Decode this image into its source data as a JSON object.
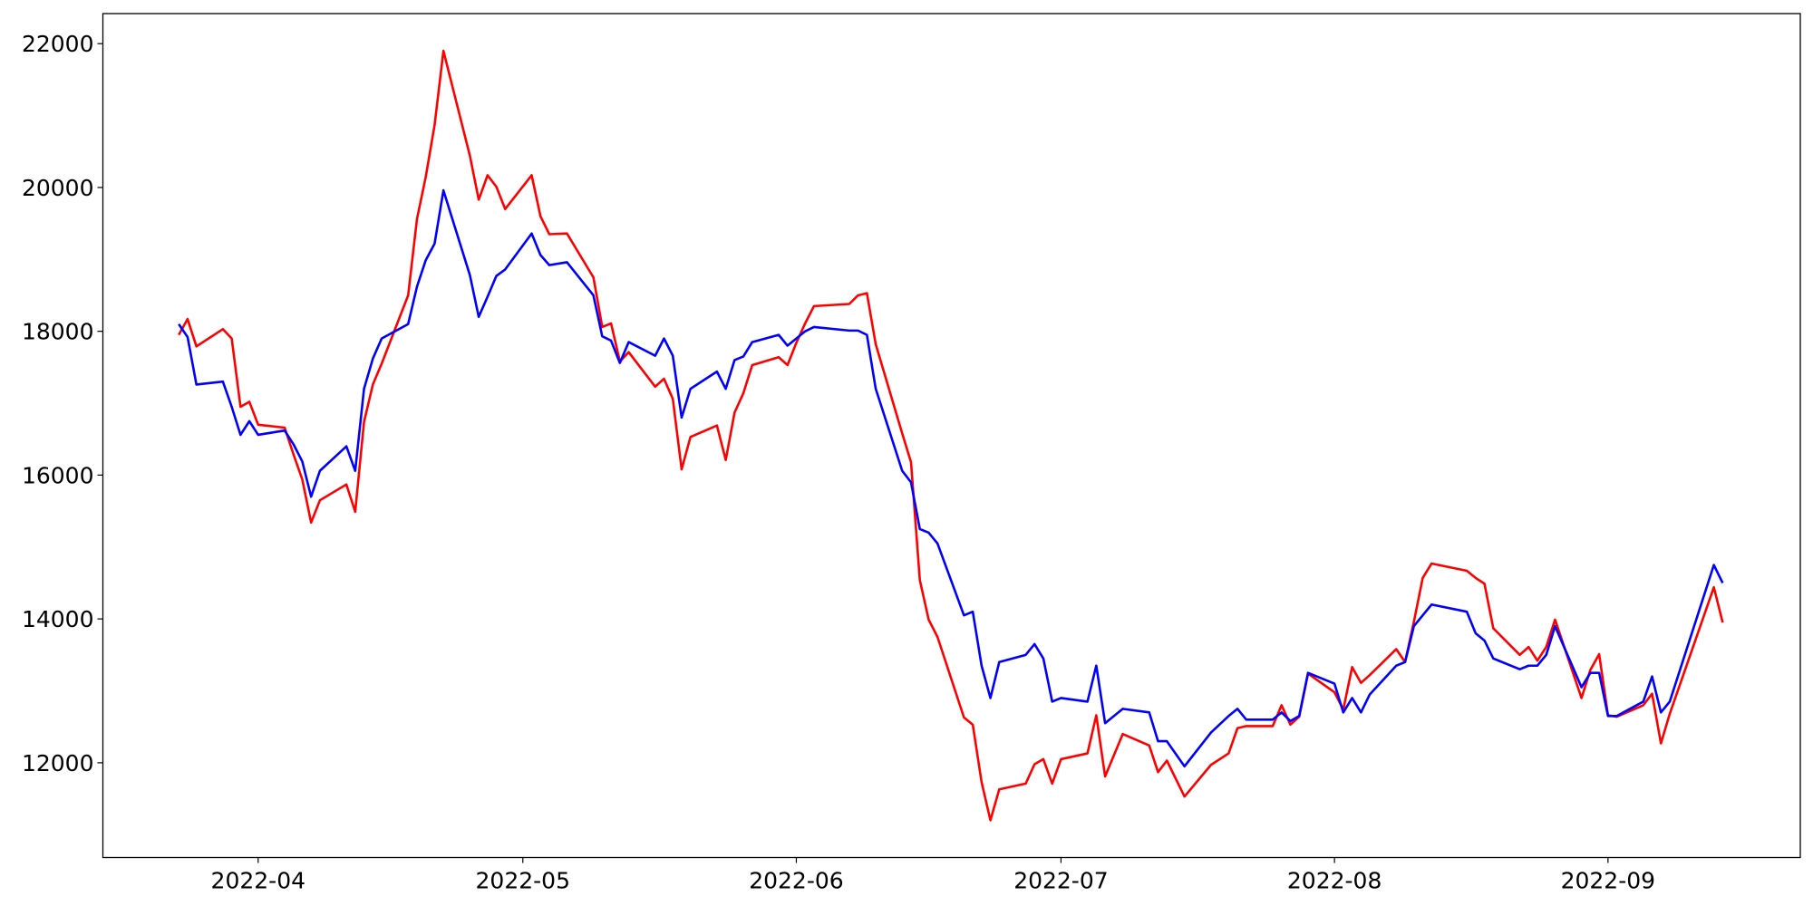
{
  "chart_data": {
    "type": "line",
    "x": [
      19074,
      19075,
      19076,
      19079,
      19080,
      19081,
      19082,
      19083,
      19086,
      19087,
      19088,
      19089,
      19090,
      19093,
      19094,
      19095,
      19096,
      19097,
      19100,
      19101,
      19102,
      19103,
      19104,
      19107,
      19108,
      19109,
      19110,
      19111,
      19114,
      19115,
      19116,
      19118,
      19121,
      19122,
      19123,
      19124,
      19125,
      19128,
      19129,
      19130,
      19131,
      19132,
      19135,
      19136,
      19137,
      19138,
      19139,
      19142,
      19143,
      19144,
      19145,
      19146,
      19150,
      19151,
      19152,
      19153,
      19156,
      19157,
      19158,
      19159,
      19160,
      19163,
      19164,
      19165,
      19166,
      19167,
      19170,
      19171,
      19172,
      19173,
      19174,
      19177,
      19178,
      19179,
      19181,
      19184,
      19185,
      19186,
      19188,
      19191,
      19193,
      19194,
      19195,
      19198,
      19199,
      19200,
      19201,
      19202,
      19205,
      19206,
      19207,
      19208,
      19209,
      19212,
      19213,
      19214,
      19215,
      19216,
      19220,
      19221,
      19222,
      19223,
      19226,
      19227,
      19228,
      19229,
      19230,
      19233,
      19234,
      19235,
      19236,
      19237,
      19240,
      19241,
      19242,
      19243,
      19248,
      19249
    ],
    "series": [
      {
        "color": "#ff0000",
        "values": [
          17950,
          18170,
          17790,
          18030,
          17900,
          16950,
          17020,
          16700,
          16660,
          16290,
          15940,
          15340,
          15650,
          15870,
          15490,
          16740,
          17260,
          17550,
          18500,
          19560,
          20150,
          20870,
          21900,
          20440,
          19830,
          20170,
          20010,
          19700,
          20170,
          19600,
          19350,
          19360,
          18750,
          18060,
          18110,
          17580,
          17710,
          17230,
          17340,
          17060,
          16080,
          16530,
          16690,
          16210,
          16870,
          17140,
          17530,
          17640,
          17530,
          17840,
          18110,
          18350,
          18380,
          18500,
          18530,
          17820,
          16580,
          16180,
          14540,
          13990,
          13750,
          12630,
          12530,
          11730,
          11200,
          11630,
          11710,
          11980,
          12050,
          11710,
          12050,
          12130,
          12660,
          11810,
          12400,
          12240,
          11870,
          12030,
          11530,
          11970,
          12130,
          12480,
          12510,
          12510,
          12800,
          12530,
          12640,
          13240,
          12980,
          12740,
          13330,
          13110,
          13220,
          13580,
          13400,
          13960,
          14570,
          14770,
          14670,
          14570,
          14490,
          13870,
          13500,
          13610,
          13420,
          13610,
          13990,
          12900,
          13290,
          13510,
          12660,
          12640,
          12800,
          12960,
          12270,
          12680,
          14440,
          13950
        ]
      },
      {
        "color": "#0000ff",
        "values": [
          18100,
          17920,
          17260,
          17300,
          16950,
          16560,
          16750,
          16560,
          16620,
          16430,
          16190,
          15700,
          16060,
          16400,
          16060,
          17200,
          17620,
          17900,
          18100,
          18620,
          18990,
          19220,
          19960,
          18780,
          18200,
          18480,
          18770,
          18860,
          19360,
          19060,
          18920,
          18960,
          18500,
          17930,
          17870,
          17560,
          17850,
          17660,
          17900,
          17660,
          16800,
          17200,
          17440,
          17200,
          17600,
          17650,
          17850,
          17950,
          17800,
          17900,
          18000,
          18060,
          18010,
          18010,
          17950,
          17200,
          16060,
          15900,
          15250,
          15200,
          15050,
          14050,
          14100,
          13350,
          12900,
          13400,
          13500,
          13650,
          13450,
          12850,
          12900,
          12850,
          13350,
          12550,
          12750,
          12700,
          12300,
          12300,
          11950,
          12420,
          12650,
          12750,
          12600,
          12600,
          12700,
          12580,
          12650,
          13250,
          13100,
          12700,
          12900,
          12700,
          12950,
          13350,
          13400,
          13900,
          14050,
          14200,
          14100,
          13800,
          13700,
          13450,
          13300,
          13350,
          13350,
          13500,
          13900,
          13050,
          13250,
          13250,
          12650,
          12650,
          12850,
          13200,
          12700,
          12850,
          14750,
          14500
        ]
      }
    ],
    "xlim": [
      19065.4,
      19257.8
    ],
    "xticks": [
      {
        "value": 19083,
        "label": "2022-04"
      },
      {
        "value": 19113,
        "label": "2022-05"
      },
      {
        "value": 19144,
        "label": "2022-06"
      },
      {
        "value": 19174,
        "label": "2022-07"
      },
      {
        "value": 19205,
        "label": "2022-08"
      },
      {
        "value": 19236,
        "label": "2022-09"
      }
    ],
    "ylim": [
      10682,
      22418
    ],
    "yticks": [
      12000,
      14000,
      16000,
      18000,
      20000,
      22000
    ]
  }
}
